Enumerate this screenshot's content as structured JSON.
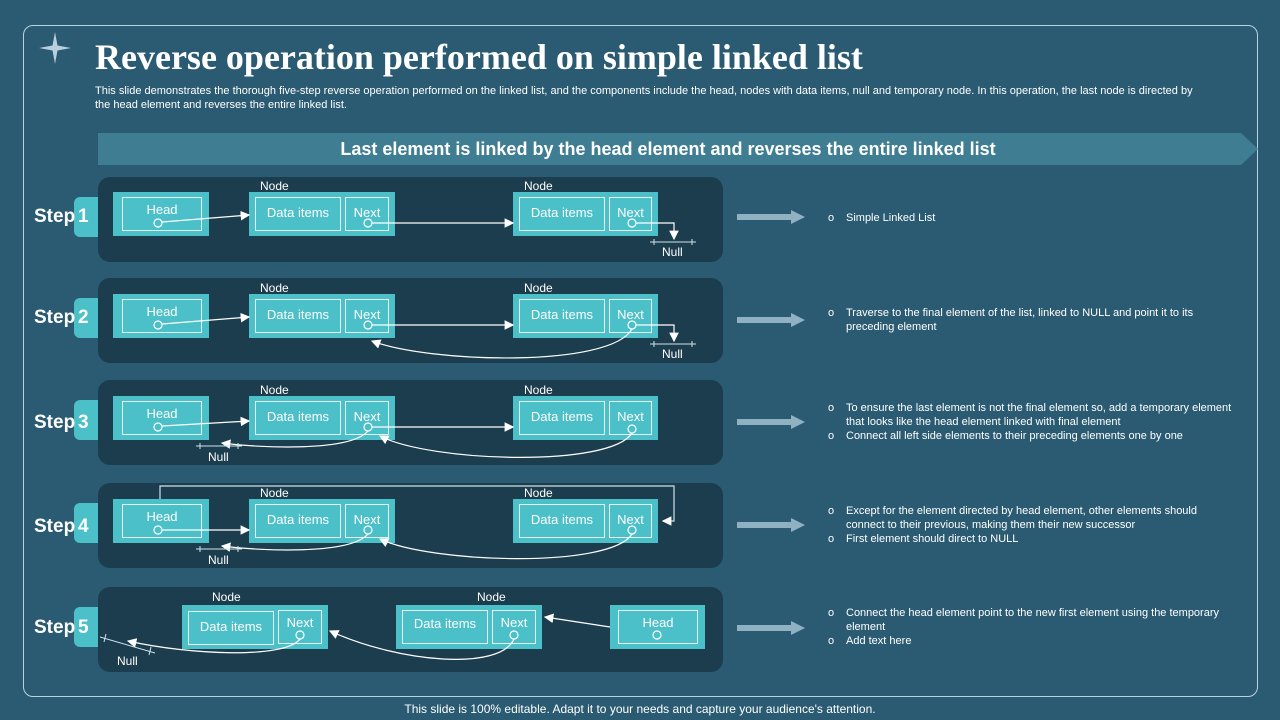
{
  "title": "Reverse operation performed on simple linked list",
  "subtitle": "This slide demonstrates the thorough five-step reverse operation performed on the linked list, and the components include the head, nodes with data items, null and temporary node. In this operation, the last node is directed by the head element and reverses the entire linked list.",
  "banner": "Last element is linked by the head element and reverses the entire linked list",
  "labels": {
    "step": "Step",
    "head": "Head",
    "data": "Data items",
    "next": "Next",
    "node": "Node",
    "null": "Null"
  },
  "steps": [
    {
      "number": "1",
      "bullets": [
        "Simple Linked List"
      ]
    },
    {
      "number": "2",
      "bullets": [
        "Traverse to the final element of the list, linked to NULL and point it to its preceding element"
      ]
    },
    {
      "number": "3",
      "bullets": [
        "To ensure the last element is not the final element so, add a temporary element that looks like the head element linked with final element",
        "Connect all left side elements to their preceding elements one by one"
      ]
    },
    {
      "number": "4",
      "bullets": [
        "Except for the element directed by head element, other elements should connect to their previous, making them their new successor",
        "First element should direct to NULL"
      ]
    },
    {
      "number": "5",
      "bullets": [
        "Connect the head element point to the new first element using the temporary element",
        "Add text here"
      ]
    }
  ],
  "footer": "This slide is 100% editable. Adapt it to your needs and capture your audience's attention.",
  "colors": {
    "background": "#2a5b72",
    "panel": "#1c3d4e",
    "node": "#4cc0c8",
    "banner": "#3f7d93",
    "arrow": "#8fb1c1"
  }
}
